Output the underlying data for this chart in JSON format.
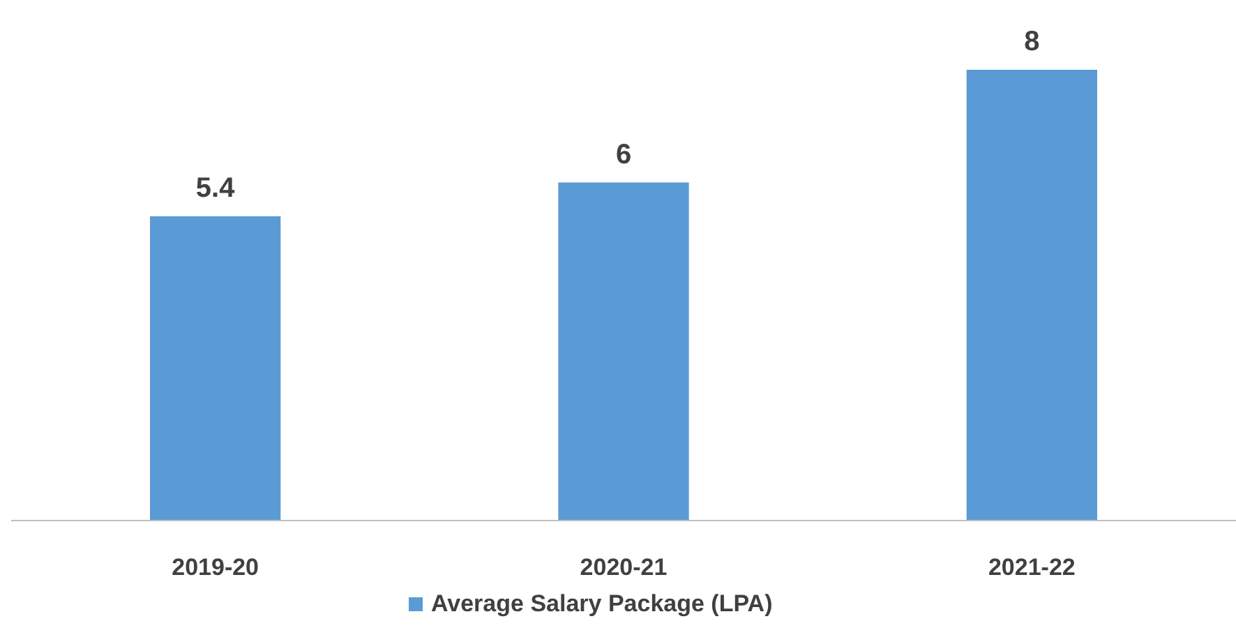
{
  "chart_data": {
    "type": "bar",
    "categories": [
      "2019-20",
      "2020-21",
      "2021-22"
    ],
    "series": [
      {
        "name": "Average Salary Package (LPA)",
        "color": "#5b9bd5",
        "values": [
          5.4,
          6,
          8
        ]
      }
    ],
    "data_labels": true,
    "legend": "bottom"
  }
}
